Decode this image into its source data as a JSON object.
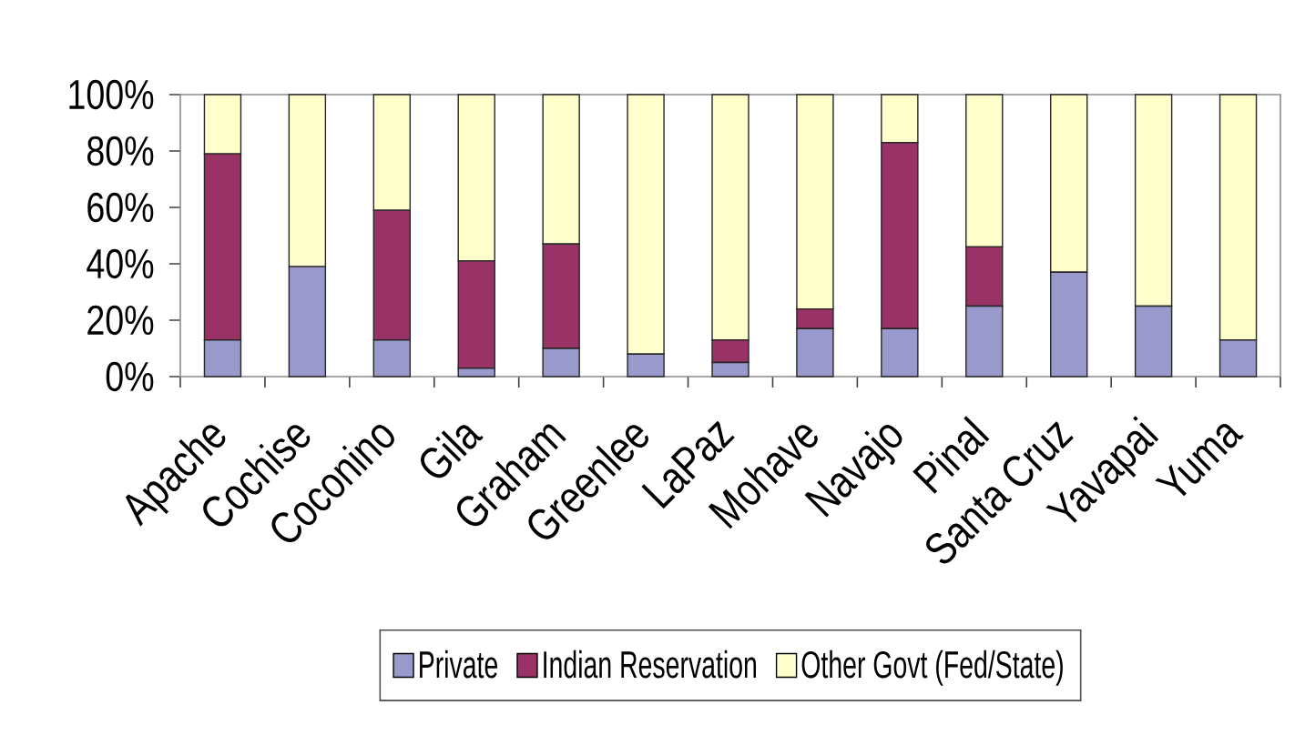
{
  "chart_data": {
    "type": "bar",
    "stacked": true,
    "categories": [
      "Apache",
      "Cochise",
      "Coconino",
      "Gila",
      "Graham",
      "Greenlee",
      "LaPaz",
      "Mohave",
      "Navajo",
      "Pinal",
      "Santa Cruz",
      "Yavapai",
      "Yuma"
    ],
    "series": [
      {
        "name": "Private",
        "color": "#9999cc",
        "values": [
          13,
          39,
          13,
          3,
          10,
          8,
          5,
          17,
          17,
          25,
          37,
          25,
          13
        ]
      },
      {
        "name": "Indian Reservation",
        "color": "#993366",
        "values": [
          66,
          0,
          46,
          38,
          37,
          0,
          8,
          7,
          66,
          21,
          0,
          0,
          0
        ]
      },
      {
        "name": "Other Govt (Fed/State)",
        "color": "#ffffcc",
        "values": [
          21,
          61,
          41,
          59,
          53,
          92,
          87,
          76,
          17,
          54,
          63,
          75,
          87
        ]
      }
    ],
    "ylim": [
      0,
      100
    ],
    "yticks": [
      {
        "value": 0,
        "label": "0%"
      },
      {
        "value": 20,
        "label": "20%"
      },
      {
        "value": 40,
        "label": "40%"
      },
      {
        "value": 60,
        "label": "60%"
      },
      {
        "value": 80,
        "label": "80%"
      },
      {
        "value": 100,
        "label": "100%"
      }
    ],
    "legend": "bottom"
  }
}
